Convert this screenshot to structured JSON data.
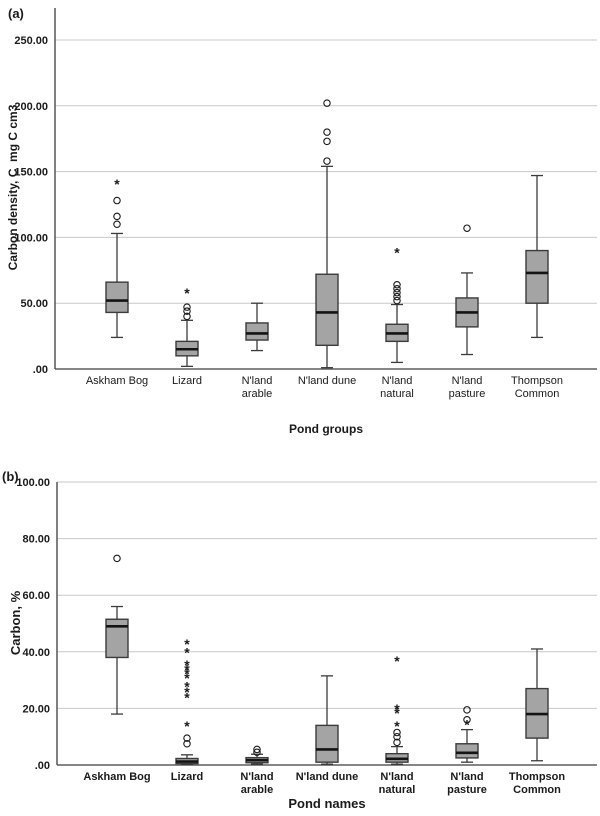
{
  "colors": {
    "background": "#ffffff",
    "box_fill": "#a4a4a4",
    "box_border": "#3b3b3b",
    "median": "#141414",
    "whisker": "#3b3b3b",
    "gridline": "#c9c9c9",
    "axis": "#3c3c3c",
    "outlier": "#1a1a1a",
    "text": "#1a1a1a"
  },
  "chart_data": [
    {
      "type": "boxplot",
      "panel_label": "(a)",
      "xlabel": "Pond groups",
      "ylabel": "Carbon density, C  mg C cm3",
      "ylim": [
        0,
        274
      ],
      "grid": true,
      "ytick_values": [
        0,
        50,
        100,
        150,
        200,
        250
      ],
      "ytick_labels": [
        ".00",
        "50.00",
        "100.00",
        "150.00",
        "200.00",
        "250.00"
      ],
      "categories": [
        "Askham Bog",
        "Lizard",
        "N'land arable",
        "N'land dune",
        "N'land natural",
        "N'land pasture",
        "Thompson Common"
      ],
      "category_label_lines": [
        [
          "Askham Bog"
        ],
        [
          "Lizard"
        ],
        [
          "N'land",
          "arable"
        ],
        [
          "N'land dune"
        ],
        [
          "N'land",
          "natural"
        ],
        [
          "N'land",
          "pasture"
        ],
        [
          "Thompson",
          "Common"
        ]
      ],
      "boxes": [
        {
          "category": "Askham Bog",
          "whisker_low": 24,
          "q1": 43,
          "median": 52,
          "q3": 66,
          "whisker_high": 103,
          "outliers_circle": [
            110,
            116,
            128
          ],
          "outliers_star": [
            141
          ]
        },
        {
          "category": "Lizard",
          "whisker_low": 2,
          "q1": 10,
          "median": 15,
          "q3": 21,
          "whisker_high": 37,
          "outliers_circle": [
            40,
            44,
            47
          ],
          "outliers_star": [
            58
          ]
        },
        {
          "category": "N'land arable",
          "whisker_low": 14,
          "q1": 22,
          "median": 27,
          "q3": 35,
          "whisker_high": 50,
          "outliers_circle": [],
          "outliers_star": []
        },
        {
          "category": "N'land dune",
          "whisker_low": 1,
          "q1": 18,
          "median": 43,
          "q3": 72,
          "whisker_high": 154,
          "outliers_circle": [
            158,
            173,
            180,
            202
          ],
          "outliers_star": []
        },
        {
          "category": "N'land natural",
          "whisker_low": 5,
          "q1": 21,
          "median": 27,
          "q3": 34,
          "whisker_high": 49,
          "outliers_circle": [
            52,
            55,
            58,
            61,
            64
          ],
          "outliers_star": [
            89
          ]
        },
        {
          "category": "N'land pasture",
          "whisker_low": 11,
          "q1": 32,
          "median": 43,
          "q3": 54,
          "whisker_high": 73,
          "outliers_circle": [
            107
          ],
          "outliers_star": []
        },
        {
          "category": "Thompson Common",
          "whisker_low": 24,
          "q1": 50,
          "median": 73,
          "q3": 90,
          "whisker_high": 147,
          "outliers_circle": [],
          "outliers_star": []
        }
      ]
    },
    {
      "type": "boxplot",
      "panel_label": "(b)",
      "xlabel": "Pond names",
      "ylabel": "Carbon, %",
      "ylim": [
        0,
        100
      ],
      "grid": true,
      "ytick_values": [
        0,
        20,
        40,
        60,
        80,
        100
      ],
      "ytick_labels": [
        ".00",
        "20.00",
        "40.00",
        "60.00",
        "80.00",
        "100.00"
      ],
      "categories": [
        "Askham Bog",
        "Lizard",
        "N'land arable",
        "N'land dune",
        "N'land natural",
        "N'land pasture",
        "Thompson Common"
      ],
      "category_label_lines": [
        [
          "Askham Bog"
        ],
        [
          "Lizard"
        ],
        [
          "N'land",
          "arable"
        ],
        [
          "N'land dune"
        ],
        [
          "N'land",
          "natural"
        ],
        [
          "N'land",
          "pasture"
        ],
        [
          "Thompson",
          "Common"
        ]
      ],
      "boxes": [
        {
          "category": "Askham Bog",
          "whisker_low": 18,
          "q1": 38,
          "median": 49,
          "q3": 51.5,
          "whisker_high": 56,
          "outliers_circle": [
            73
          ],
          "outliers_star": []
        },
        {
          "category": "Lizard",
          "whisker_low": 0.2,
          "q1": 0.5,
          "median": 1.2,
          "q3": 2.3,
          "whisker_high": 3.6,
          "outliers_circle": [
            7.5,
            9.5
          ],
          "outliers_star": [
            14,
            24,
            26,
            28,
            31,
            32.5,
            34,
            35.5,
            40,
            43
          ]
        },
        {
          "category": "N'land arable",
          "whisker_low": 0.3,
          "q1": 0.8,
          "median": 1.7,
          "q3": 2.6,
          "whisker_high": 3.8,
          "outliers_circle": [
            4.5,
            5.5
          ],
          "outliers_star": []
        },
        {
          "category": "N'land dune",
          "whisker_low": 0.3,
          "q1": 1,
          "median": 5.5,
          "q3": 14,
          "whisker_high": 31.5,
          "outliers_circle": [],
          "outliers_star": []
        },
        {
          "category": "N'land natural",
          "whisker_low": 0.3,
          "q1": 1,
          "median": 2.2,
          "q3": 4,
          "whisker_high": 6.5,
          "outliers_circle": [
            8,
            10,
            11.5
          ],
          "outliers_star": [
            14,
            18.5,
            20,
            37
          ]
        },
        {
          "category": "N'land pasture",
          "whisker_low": 1,
          "q1": 2.5,
          "median": 4.3,
          "q3": 7.5,
          "whisker_high": 12.5,
          "outliers_circle": [
            16,
            19.5
          ],
          "outliers_star": [
            14.5
          ]
        },
        {
          "category": "Thompson Common",
          "whisker_low": 1.5,
          "q1": 9.5,
          "median": 18,
          "q3": 27,
          "whisker_high": 41,
          "outliers_circle": [],
          "outliers_star": []
        }
      ]
    }
  ]
}
